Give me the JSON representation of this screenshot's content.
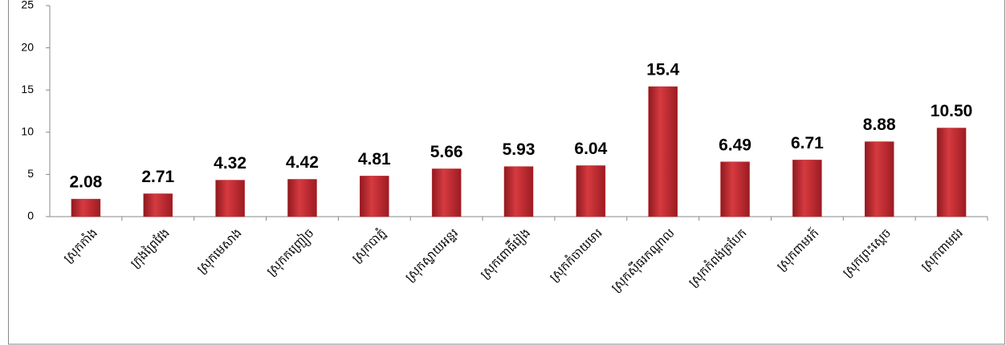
{
  "chart_data": {
    "type": "bar",
    "categories": [
      "ស្រុកកាំង",
      "ក្រុងព្រៃវែង",
      "ស្រុកមេសាង",
      "ស្រុកកញ្ជ្រៀច",
      "ស្រុកបាភ្នំ",
      "ស្រុកស្វាយអន្ទរ",
      "ស្រុកពោធិ៍រៀង",
      "ស្រុកកំចាយមារ",
      "ស្រុកស៊ីធរកណ្ដាល",
      "ស្រុកកំពង់ត្របែក",
      "ស្រុកពាមរក៍",
      "ស្រុកព្រះស្ដេច",
      "ស្រុកពាមជរ"
    ],
    "values": [
      2.08,
      2.71,
      4.32,
      4.42,
      4.81,
      5.66,
      5.93,
      6.04,
      15.4,
      6.49,
      6.71,
      8.88,
      10.5
    ],
    "value_labels": [
      "2.08",
      "2.71",
      "4.32",
      "4.42",
      "4.81",
      "5.66",
      "5.93",
      "6.04",
      "15.4",
      "6.49",
      "6.71",
      "8.88",
      "10.50"
    ],
    "color": "#c0272d",
    "ylim": [
      0,
      25
    ],
    "yticks": [
      0,
      5,
      10,
      15,
      20,
      25
    ],
    "grid": false
  }
}
